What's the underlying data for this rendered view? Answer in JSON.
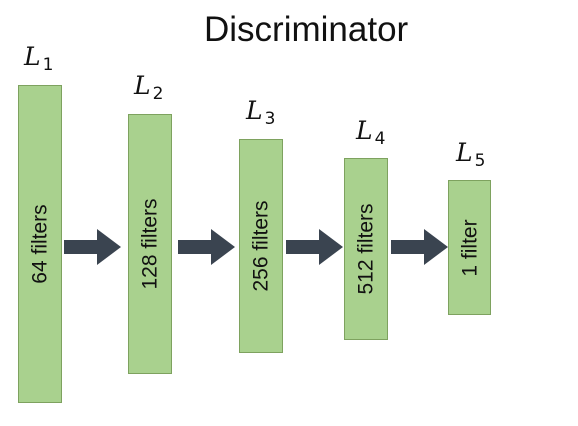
{
  "diagram": {
    "title": "Discriminator",
    "colors": {
      "box_fill": "#a9d18e",
      "box_border": "#7ea25f",
      "arrow": "#3a4450",
      "text": "#111111"
    },
    "layers": [
      {
        "name": "L",
        "index": "1",
        "label": "64 filters"
      },
      {
        "name": "L",
        "index": "2",
        "label": "128 filters"
      },
      {
        "name": "L",
        "index": "3",
        "label": "256 filters"
      },
      {
        "name": "L",
        "index": "4",
        "label": "512 filters"
      },
      {
        "name": "L",
        "index": "5",
        "label": "1 filter"
      }
    ]
  }
}
